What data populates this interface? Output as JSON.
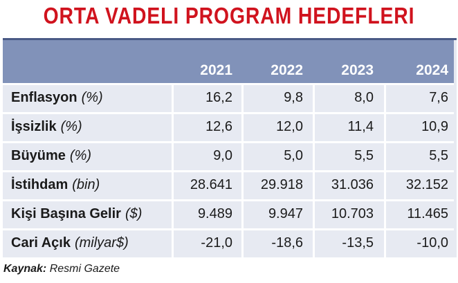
{
  "title": "ORTA VADELI PROGRAM HEDEFLERI",
  "years": [
    "2021",
    "2022",
    "2023",
    "2024"
  ],
  "rows": [
    {
      "label": "Enflasyon",
      "unit": "(%)",
      "values": [
        "16,2",
        "9,8",
        "8,0",
        "7,6"
      ]
    },
    {
      "label": "İşsizlik",
      "unit": "(%)",
      "values": [
        "12,6",
        "12,0",
        "11,4",
        "10,9"
      ]
    },
    {
      "label": "Büyüme",
      "unit": "(%)",
      "values": [
        "9,0",
        "5,0",
        "5,5",
        "5,5"
      ]
    },
    {
      "label": "İstihdam",
      "unit": "(bin)",
      "values": [
        "28.641",
        "29.918",
        "31.036",
        "32.152"
      ]
    },
    {
      "label": "Kişi Başına Gelir",
      "unit": "($)",
      "values": [
        "9.489",
        "9.947",
        "10.703",
        "11.465"
      ]
    },
    {
      "label": "Cari Açık",
      "unit": "(milyar$)",
      "values": [
        "-21,0",
        "-18,6",
        "-13,5",
        "-10,0"
      ]
    }
  ],
  "source": {
    "key": "Kaynak:",
    "value": "Resmi Gazete"
  },
  "colors": {
    "title": "#d0131e",
    "header": "#8192b9",
    "body": "#e7eaf2"
  }
}
